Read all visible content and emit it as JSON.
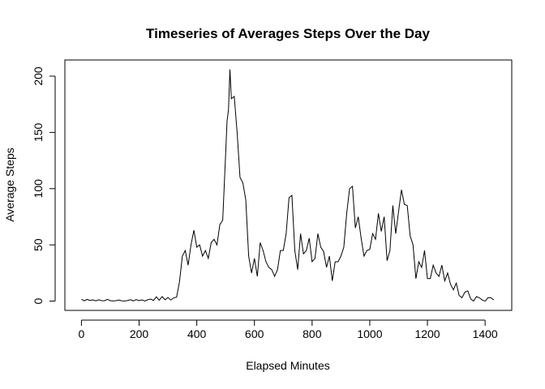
{
  "chart_data": {
    "type": "line",
    "title": "Timeseries of Averages Steps Over the Day",
    "x_label": "Elapsed Minutes",
    "y_label": "Average Steps",
    "xlim": [
      -57.4,
      1492.4
    ],
    "ylim": [
      -8.25,
      214.4
    ],
    "xticks": [
      0,
      200,
      400,
      600,
      800,
      1000,
      1200,
      1400
    ],
    "yticks": [
      0,
      50,
      100,
      150,
      200
    ],
    "color": "#000000",
    "x": [
      0,
      10,
      20,
      30,
      40,
      50,
      60,
      70,
      80,
      90,
      100,
      110,
      120,
      130,
      140,
      150,
      160,
      170,
      180,
      190,
      200,
      210,
      220,
      230,
      240,
      250,
      260,
      270,
      280,
      290,
      300,
      310,
      320,
      330,
      340,
      350,
      360,
      370,
      380,
      390,
      400,
      410,
      420,
      430,
      440,
      450,
      460,
      470,
      480,
      490,
      500,
      505,
      510,
      515,
      520,
      530,
      540,
      550,
      560,
      570,
      580,
      590,
      600,
      610,
      620,
      630,
      640,
      650,
      660,
      670,
      680,
      690,
      700,
      710,
      720,
      730,
      740,
      750,
      760,
      770,
      780,
      790,
      800,
      810,
      820,
      830,
      840,
      850,
      860,
      870,
      880,
      890,
      900,
      910,
      920,
      930,
      940,
      950,
      960,
      970,
      980,
      990,
      1000,
      1010,
      1020,
      1030,
      1040,
      1050,
      1060,
      1070,
      1080,
      1090,
      1100,
      1110,
      1120,
      1130,
      1140,
      1150,
      1160,
      1170,
      1180,
      1190,
      1200,
      1210,
      1220,
      1230,
      1240,
      1250,
      1260,
      1270,
      1280,
      1290,
      1300,
      1310,
      1320,
      1330,
      1340,
      1350,
      1360,
      1370,
      1380,
      1390,
      1400,
      1410,
      1420,
      1430
    ],
    "values": [
      1.7,
      0.3,
      1.5,
      0.6,
      1.1,
      0.2,
      1.2,
      0.4,
      0.3,
      1.5,
      0.4,
      0.1,
      0.4,
      1.0,
      0.2,
      0.1,
      0.5,
      1.3,
      0.2,
      1.4,
      0.4,
      1.1,
      0.1,
      1.2,
      1.8,
      0.6,
      3.8,
      0.8,
      4.1,
      1.2,
      3.2,
      1.0,
      2.9,
      3.5,
      17,
      40,
      45,
      32,
      50,
      63,
      48,
      50,
      40,
      45,
      38,
      52,
      55,
      50,
      68,
      72,
      130,
      160,
      170,
      206,
      180,
      182,
      150,
      110,
      105,
      90,
      40,
      25,
      38,
      22,
      52,
      45,
      35,
      30,
      28,
      22,
      28,
      45,
      45,
      60,
      92,
      94,
      45,
      28,
      60,
      42,
      45,
      56,
      35,
      38,
      60,
      48,
      44,
      30,
      40,
      18,
      35,
      35,
      40,
      48,
      78,
      100,
      102,
      65,
      75,
      56,
      40,
      45,
      46,
      60,
      55,
      78,
      62,
      75,
      36,
      45,
      85,
      60,
      80,
      99,
      86,
      85,
      58,
      50,
      20,
      35,
      30,
      45,
      20,
      20,
      32,
      25,
      22,
      32,
      18,
      25,
      15,
      10,
      16,
      5,
      3,
      8,
      9,
      2,
      0,
      4,
      3,
      1,
      0,
      3,
      3,
      1
    ]
  }
}
